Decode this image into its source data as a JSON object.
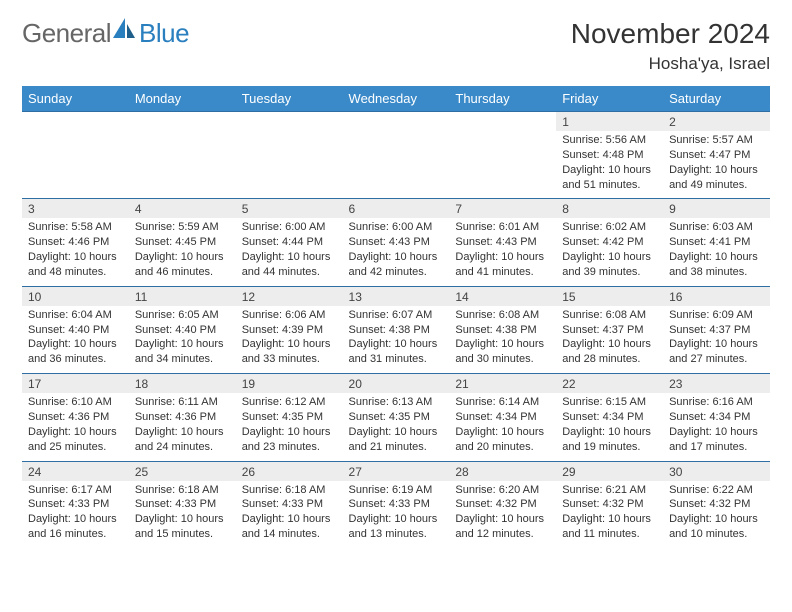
{
  "logo": {
    "general": "General",
    "blue": "Blue"
  },
  "title": "November 2024",
  "location": "Hosha'ya, Israel",
  "colors": {
    "header_bg": "#3a8ac9",
    "header_text": "#ffffff",
    "daynum_bg": "#ededed",
    "border": "#2f6ea3",
    "body_text": "#333333",
    "logo_gray": "#666666",
    "logo_blue": "#2a7fbf"
  },
  "day_headers": [
    "Sunday",
    "Monday",
    "Tuesday",
    "Wednesday",
    "Thursday",
    "Friday",
    "Saturday"
  ],
  "weeks": [
    [
      {
        "n": "",
        "t": ""
      },
      {
        "n": "",
        "t": ""
      },
      {
        "n": "",
        "t": ""
      },
      {
        "n": "",
        "t": ""
      },
      {
        "n": "",
        "t": ""
      },
      {
        "n": "1",
        "t": "Sunrise: 5:56 AM\nSunset: 4:48 PM\nDaylight: 10 hours and 51 minutes."
      },
      {
        "n": "2",
        "t": "Sunrise: 5:57 AM\nSunset: 4:47 PM\nDaylight: 10 hours and 49 minutes."
      }
    ],
    [
      {
        "n": "3",
        "t": "Sunrise: 5:58 AM\nSunset: 4:46 PM\nDaylight: 10 hours and 48 minutes."
      },
      {
        "n": "4",
        "t": "Sunrise: 5:59 AM\nSunset: 4:45 PM\nDaylight: 10 hours and 46 minutes."
      },
      {
        "n": "5",
        "t": "Sunrise: 6:00 AM\nSunset: 4:44 PM\nDaylight: 10 hours and 44 minutes."
      },
      {
        "n": "6",
        "t": "Sunrise: 6:00 AM\nSunset: 4:43 PM\nDaylight: 10 hours and 42 minutes."
      },
      {
        "n": "7",
        "t": "Sunrise: 6:01 AM\nSunset: 4:43 PM\nDaylight: 10 hours and 41 minutes."
      },
      {
        "n": "8",
        "t": "Sunrise: 6:02 AM\nSunset: 4:42 PM\nDaylight: 10 hours and 39 minutes."
      },
      {
        "n": "9",
        "t": "Sunrise: 6:03 AM\nSunset: 4:41 PM\nDaylight: 10 hours and 38 minutes."
      }
    ],
    [
      {
        "n": "10",
        "t": "Sunrise: 6:04 AM\nSunset: 4:40 PM\nDaylight: 10 hours and 36 minutes."
      },
      {
        "n": "11",
        "t": "Sunrise: 6:05 AM\nSunset: 4:40 PM\nDaylight: 10 hours and 34 minutes."
      },
      {
        "n": "12",
        "t": "Sunrise: 6:06 AM\nSunset: 4:39 PM\nDaylight: 10 hours and 33 minutes."
      },
      {
        "n": "13",
        "t": "Sunrise: 6:07 AM\nSunset: 4:38 PM\nDaylight: 10 hours and 31 minutes."
      },
      {
        "n": "14",
        "t": "Sunrise: 6:08 AM\nSunset: 4:38 PM\nDaylight: 10 hours and 30 minutes."
      },
      {
        "n": "15",
        "t": "Sunrise: 6:08 AM\nSunset: 4:37 PM\nDaylight: 10 hours and 28 minutes."
      },
      {
        "n": "16",
        "t": "Sunrise: 6:09 AM\nSunset: 4:37 PM\nDaylight: 10 hours and 27 minutes."
      }
    ],
    [
      {
        "n": "17",
        "t": "Sunrise: 6:10 AM\nSunset: 4:36 PM\nDaylight: 10 hours and 25 minutes."
      },
      {
        "n": "18",
        "t": "Sunrise: 6:11 AM\nSunset: 4:36 PM\nDaylight: 10 hours and 24 minutes."
      },
      {
        "n": "19",
        "t": "Sunrise: 6:12 AM\nSunset: 4:35 PM\nDaylight: 10 hours and 23 minutes."
      },
      {
        "n": "20",
        "t": "Sunrise: 6:13 AM\nSunset: 4:35 PM\nDaylight: 10 hours and 21 minutes."
      },
      {
        "n": "21",
        "t": "Sunrise: 6:14 AM\nSunset: 4:34 PM\nDaylight: 10 hours and 20 minutes."
      },
      {
        "n": "22",
        "t": "Sunrise: 6:15 AM\nSunset: 4:34 PM\nDaylight: 10 hours and 19 minutes."
      },
      {
        "n": "23",
        "t": "Sunrise: 6:16 AM\nSunset: 4:34 PM\nDaylight: 10 hours and 17 minutes."
      }
    ],
    [
      {
        "n": "24",
        "t": "Sunrise: 6:17 AM\nSunset: 4:33 PM\nDaylight: 10 hours and 16 minutes."
      },
      {
        "n": "25",
        "t": "Sunrise: 6:18 AM\nSunset: 4:33 PM\nDaylight: 10 hours and 15 minutes."
      },
      {
        "n": "26",
        "t": "Sunrise: 6:18 AM\nSunset: 4:33 PM\nDaylight: 10 hours and 14 minutes."
      },
      {
        "n": "27",
        "t": "Sunrise: 6:19 AM\nSunset: 4:33 PM\nDaylight: 10 hours and 13 minutes."
      },
      {
        "n": "28",
        "t": "Sunrise: 6:20 AM\nSunset: 4:32 PM\nDaylight: 10 hours and 12 minutes."
      },
      {
        "n": "29",
        "t": "Sunrise: 6:21 AM\nSunset: 4:32 PM\nDaylight: 10 hours and 11 minutes."
      },
      {
        "n": "30",
        "t": "Sunrise: 6:22 AM\nSunset: 4:32 PM\nDaylight: 10 hours and 10 minutes."
      }
    ]
  ]
}
